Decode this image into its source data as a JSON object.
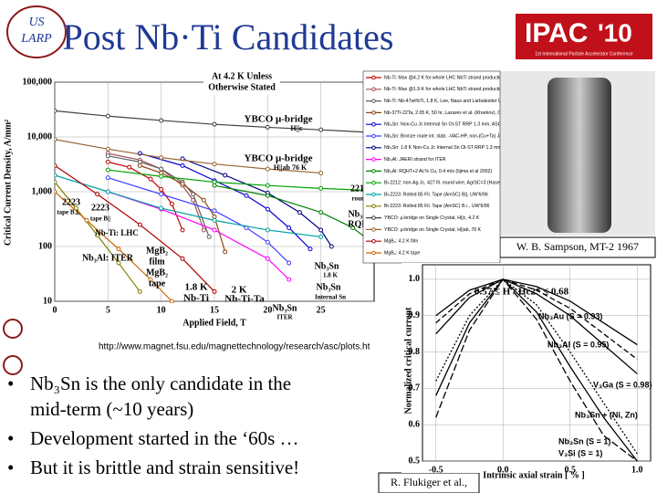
{
  "header": {
    "title": "Post Nb·Ti Candidates",
    "logo_left": [
      "US",
      "LARP"
    ],
    "logo_right": "IPAC",
    "logo_right_year": "'10",
    "logo_right_sub": "1st International Particle Accelerator Conference"
  },
  "chart_data": [
    {
      "type": "line",
      "y_log": true,
      "ylabel": "Critical Current Density, A/mm²",
      "xlabel": "Applied Field, T",
      "xlim": [
        0,
        30
      ],
      "xticks": [
        0,
        5,
        10,
        15,
        20,
        25
      ],
      "ylim": [
        10,
        100000
      ],
      "yticks": [
        10,
        100,
        {
          "value": 1000,
          "label": "1,000"
        },
        {
          "value": 10000,
          "label": "10,000"
        },
        {
          "value": 100000,
          "label": "100,000"
        }
      ],
      "annotations": [
        "At 4.2 K Unless",
        "Otherwise Stated",
        "YBCO μ-bridge",
        "H||c",
        "YBCO μ-bridge",
        "H||ab 76 K",
        "2212",
        "round wire",
        "Nb₃Al:",
        "RQHT",
        "2223",
        "tape B⊥",
        "2223",
        "tape B||",
        "Nb-Ti: LHC",
        "Nb₃Al: ITER",
        "MgB₂",
        "film",
        "MgB₂",
        "tape",
        "1.8 K",
        "Nb-Ti",
        "2 K",
        "Nb-Ti-Ta",
        "Nb₃Sn",
        "ITER",
        "Nb₃Sn",
        "1.8 K",
        "Nb₃Sn",
        "Internal Sn"
      ],
      "url": "http://www.magnet.fsu.edu/magnettechnology/research/asc/plots.ht",
      "series": [
        {
          "name": "Nb-Ti: Max @4.2 K for whole LHC NbTi strand production (CERN-T. Boutboul)",
          "color": "#c00000",
          "x": [
            5,
            7,
            9,
            10,
            11,
            12
          ],
          "values": [
            3500,
            2800,
            1700,
            1100,
            600,
            200
          ]
        },
        {
          "name": "Nb-Ti: Max @1.9 K for whole LHC NbTi strand production (CERN-T. Boutboul)",
          "color": "#a05050",
          "x": [
            5,
            8,
            10,
            12,
            13,
            14
          ],
          "values": [
            5000,
            3800,
            2600,
            1300,
            700,
            200
          ]
        },
        {
          "name": "Nb-Ti: Nb-47wt%Ti, 1.8 K, Lee, Naus and Larbalestier UW-ASC '96",
          "color": "#606060",
          "x": [
            5,
            8,
            10,
            12,
            13,
            14.5
          ],
          "values": [
            4500,
            3500,
            2600,
            1500,
            900,
            150
          ]
        },
        {
          "name": "Nb-37Ti-22Ta, 2.05 K, 50 hr, Lazarev et al. (Kharkov), CCSW '94",
          "color": "#8b4513",
          "x": [
            8,
            10,
            12,
            14,
            15,
            16
          ],
          "values": [
            3000,
            2200,
            1400,
            700,
            350,
            80
          ]
        },
        {
          "name": "Nb₃Sn: Non-Cu Jc Internal Sn OI-ST RRP 1.3 mm, ASC'02/ICMC'03",
          "color": "#0000cc",
          "x": [
            8,
            12,
            15,
            18,
            20,
            22,
            24
          ],
          "values": [
            5000,
            3000,
            1600,
            850,
            480,
            220,
            90
          ]
        },
        {
          "name": "Nb₃Sn: Bronze route int. stab. -VAC-HP, non-(Cu+Ta) Jc, Thoener et al., Erice '96",
          "color": "#4040ff",
          "x": [
            5,
            10,
            15,
            18,
            20,
            22
          ],
          "values": [
            1800,
            900,
            450,
            220,
            120,
            50
          ]
        },
        {
          "name": "Nb₃Sn: 1.8 K Non-Cu Jc Internal Sn OI-ST RRP 1.3 mm, ASC'02/ICMC'03",
          "color": "#000080",
          "x": [
            12,
            16,
            20,
            23,
            25,
            26
          ],
          "values": [
            4000,
            2000,
            950,
            420,
            200,
            100
          ]
        },
        {
          "name": "Nb₃Al: JAERI strand for ITER",
          "color": "#ff00ff",
          "x": [
            5,
            10,
            15,
            20,
            22
          ],
          "values": [
            1000,
            480,
            200,
            60,
            25
          ]
        },
        {
          "name": "Nb₃Al: RQHT+2 At.% Cu, 0.4 m/s (Iijima et al 2002)",
          "color": "#008000",
          "x": [
            15,
            20,
            25,
            28,
            30
          ],
          "values": [
            1300,
            850,
            420,
            220,
            110
          ]
        },
        {
          "name": "Bi-2212: non-Ag Jc, 427 fil. round wire, Ag/SC=3 (Hasegawa ASC-2000/MT17-2001)",
          "color": "#00a000",
          "x": [
            5,
            10,
            15,
            20,
            25,
            30
          ],
          "values": [
            2500,
            1900,
            1500,
            1300,
            1150,
            1050
          ]
        },
        {
          "name": "Bi-2223: Rolled 85 Fil. Tape (AmSC) B||, UW'6/96",
          "color": "#00a0a0",
          "x": [
            0,
            5,
            10,
            15,
            20,
            25
          ],
          "values": [
            2000,
            1000,
            500,
            300,
            200,
            150
          ]
        },
        {
          "name": "Bi-2223: Rolled 85 Fil. Tape (AmSC) B⊥, UW'6/96",
          "color": "#808000",
          "x": [
            0,
            2,
            4,
            6,
            8
          ],
          "values": [
            1500,
            500,
            160,
            50,
            15
          ]
        },
        {
          "name": "YBCO: μ-bridge on Single Crystal, H||c, 4.2 K",
          "color": "#404040",
          "x": [
            0,
            5,
            10,
            15,
            20,
            25,
            30
          ],
          "values": [
            30000,
            24000,
            20000,
            17000,
            15000,
            13500,
            12000
          ]
        },
        {
          "name": "YBCO: μ-bridge on Single Crystal, H||ab, 76 K",
          "color": "#996633",
          "x": [
            0,
            5,
            10,
            15,
            20,
            25
          ],
          "values": [
            9000,
            6000,
            4200,
            3200,
            2600,
            2200
          ]
        },
        {
          "name": "MgB₂: 4.2 K film",
          "color": "#b00000",
          "x": [
            0,
            4,
            8,
            12,
            15
          ],
          "values": [
            3000,
            900,
            250,
            60,
            15
          ]
        },
        {
          "name": "MgB₂: 4.2 K tape",
          "color": "#cc6600",
          "x": [
            0,
            3,
            6,
            9,
            11
          ],
          "values": [
            1000,
            300,
            90,
            25,
            10
          ]
        }
      ]
    },
    {
      "type": "line",
      "ylabel": "Normalized critical current",
      "xlabel": "Intrinsic axial strain  [ % ]",
      "annotation": "0.57 ≤ H / Hc2* ≤ 0.68",
      "xlim": [
        -0.6,
        1.1
      ],
      "xticks": [
        -0.5,
        {
          "value": 0,
          "label": "0.0"
        },
        0.5,
        {
          "value": 1,
          "label": "1.0"
        }
      ],
      "ylim": [
        0.5,
        1.04
      ],
      "yticks": [
        0.5,
        0.6,
        0.7,
        0.8,
        0.9,
        {
          "value": 1,
          "label": "1.0"
        }
      ],
      "x": [
        -0.5,
        -0.25,
        0,
        0.25,
        0.5,
        0.75,
        1.0
      ],
      "series": [
        {
          "name": "Nb₃Au (S = 0.93)",
          "color": "#000000",
          "values": [
            0.9,
            0.97,
            1.0,
            0.98,
            0.94,
            0.88,
            0.82
          ]
        },
        {
          "name": "Nb₃Al (S = 0.95)",
          "color": "#000000",
          "values": [
            0.88,
            0.96,
            1.0,
            0.97,
            0.92,
            0.85,
            0.78
          ]
        },
        {
          "name": "V₃Ga (S = 0.98)",
          "color": "#000000",
          "values": [
            0.85,
            0.95,
            1.0,
            0.96,
            0.9,
            0.82,
            0.74
          ]
        },
        {
          "name": "Nb₃Sn + (Ni, Zn)",
          "color": "#000000",
          "values": [
            0.72,
            0.9,
            1.0,
            0.93,
            0.8,
            0.66,
            0.52
          ]
        },
        {
          "name": "Nb₃Sn (S = 1)",
          "color": "#000000",
          "values": [
            0.68,
            0.88,
            1.0,
            0.91,
            0.76,
            0.62,
            0.5
          ]
        },
        {
          "name": "V₃Si (S = 1)",
          "color": "#000000",
          "values": [
            0.62,
            0.86,
            1.0,
            0.89,
            0.72,
            0.57,
            0.5
          ]
        }
      ]
    }
  ],
  "credits": [
    "W. B. Sampson, MT-2 1967",
    "R. Flukiger et al.,"
  ],
  "bullets": [
    [
      "Nb₃Sn is the only candidate in the",
      "mid-term (~10 years)"
    ],
    [
      "Development started in the ‘60s …"
    ],
    [
      "But it is brittle and strain sensitive!"
    ]
  ]
}
